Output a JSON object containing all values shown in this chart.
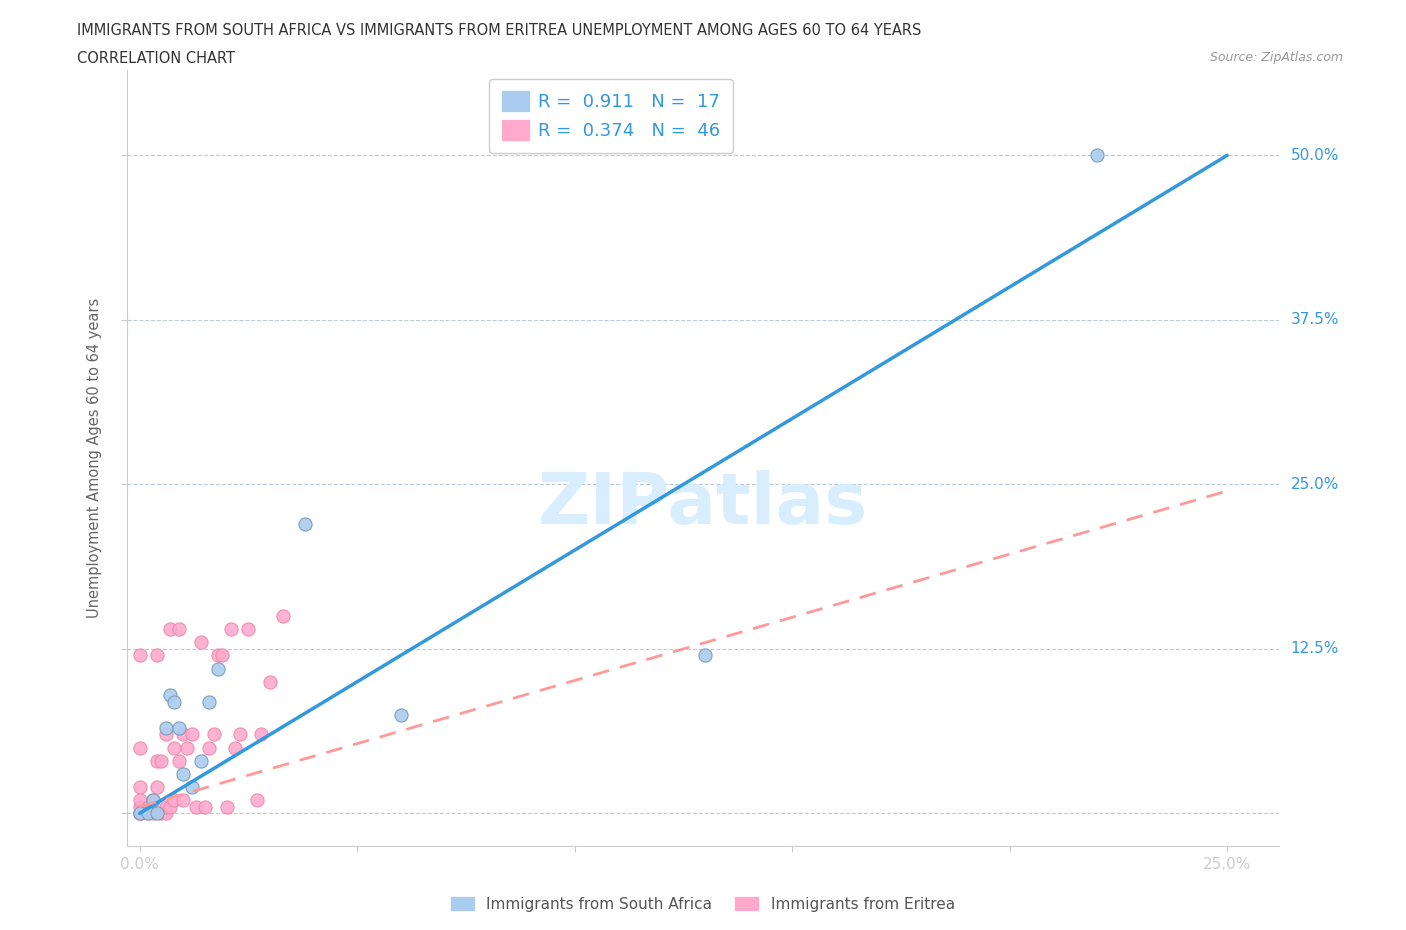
{
  "title_line1": "IMMIGRANTS FROM SOUTH AFRICA VS IMMIGRANTS FROM ERITREA UNEMPLOYMENT AMONG AGES 60 TO 64 YEARS",
  "title_line2": "CORRELATION CHART",
  "source": "Source: ZipAtlas.com",
  "ylabel": "Unemployment Among Ages 60 to 64 years",
  "xlim": [
    -0.003,
    0.262
  ],
  "ylim": [
    -0.025,
    0.565
  ],
  "xticks": [
    0.0,
    0.05,
    0.1,
    0.15,
    0.2,
    0.25
  ],
  "ytick_positions": [
    0.0,
    0.125,
    0.25,
    0.375,
    0.5
  ],
  "yticklabels_right": [
    "",
    "12.5%",
    "25.0%",
    "37.5%",
    "50.0%"
  ],
  "color_blue": "#AACCEE",
  "color_pink": "#FFAACC",
  "line_blue": "#3399DD",
  "line_pink": "#FF9999",
  "R_blue": 0.911,
  "N_blue": 17,
  "R_pink": 0.374,
  "N_pink": 46,
  "south_africa_x": [
    0.0,
    0.002,
    0.003,
    0.004,
    0.006,
    0.007,
    0.008,
    0.009,
    0.01,
    0.012,
    0.014,
    0.016,
    0.018,
    0.038,
    0.06,
    0.13,
    0.22
  ],
  "south_africa_y": [
    0.0,
    0.0,
    0.01,
    0.0,
    0.065,
    0.09,
    0.085,
    0.065,
    0.03,
    0.02,
    0.04,
    0.085,
    0.11,
    0.22,
    0.075,
    0.12,
    0.5
  ],
  "eritrea_x": [
    0.0,
    0.0,
    0.0,
    0.0,
    0.0,
    0.0,
    0.0,
    0.0,
    0.002,
    0.002,
    0.003,
    0.003,
    0.004,
    0.004,
    0.004,
    0.005,
    0.005,
    0.006,
    0.006,
    0.006,
    0.007,
    0.007,
    0.008,
    0.008,
    0.009,
    0.009,
    0.01,
    0.01,
    0.011,
    0.012,
    0.013,
    0.014,
    0.015,
    0.016,
    0.017,
    0.018,
    0.019,
    0.02,
    0.021,
    0.022,
    0.023,
    0.025,
    0.027,
    0.028,
    0.03,
    0.033
  ],
  "eritrea_y": [
    0.0,
    0.0,
    0.0,
    0.005,
    0.01,
    0.02,
    0.05,
    0.12,
    0.0,
    0.005,
    0.0,
    0.01,
    0.02,
    0.04,
    0.12,
    0.0,
    0.04,
    0.0,
    0.005,
    0.06,
    0.005,
    0.14,
    0.01,
    0.05,
    0.04,
    0.14,
    0.01,
    0.06,
    0.05,
    0.06,
    0.005,
    0.13,
    0.005,
    0.05,
    0.06,
    0.12,
    0.12,
    0.005,
    0.14,
    0.05,
    0.06,
    0.14,
    0.01,
    0.06,
    0.1,
    0.15
  ],
  "sa_line_x": [
    0.0,
    0.25
  ],
  "sa_line_y": [
    0.0,
    0.5
  ],
  "er_line_x": [
    0.0,
    0.25
  ],
  "er_line_y": [
    0.005,
    0.245
  ]
}
